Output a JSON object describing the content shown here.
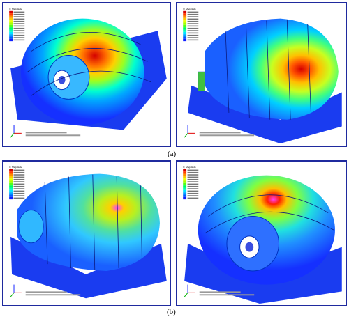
{
  "captions": {
    "a": "(a)",
    "b": "(b)"
  },
  "legend": {
    "title": "U, Magnitude",
    "colors": [
      "#d40000",
      "#ff3a00",
      "#ff8c00",
      "#ffc800",
      "#e8ff00",
      "#a6ff00",
      "#54ff18",
      "#00ff5a",
      "#00ffb0",
      "#00e5ff",
      "#00a8ff",
      "#005cff",
      "#1020ff"
    ]
  },
  "panels": [
    {
      "id": "a-left"
    },
    {
      "id": "a-right"
    },
    {
      "id": "b-left"
    },
    {
      "id": "b-right"
    }
  ]
}
